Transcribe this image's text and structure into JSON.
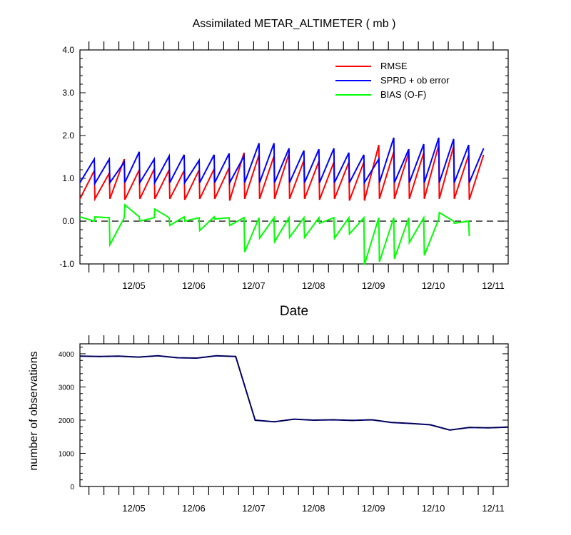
{
  "chart_data": [
    {
      "type": "line",
      "title": "Assimilated METAR_ALTIMETER ( mb )",
      "xlabel": "Date",
      "ylabel": "",
      "ylim": [
        -1.0,
        4.0
      ],
      "yticks": [
        "-1.0",
        "0.0",
        "1.0",
        "2.0",
        "3.0",
        "4.0"
      ],
      "xticks": [
        "12/05",
        "12/06",
        "12/07",
        "12/08",
        "12/09",
        "12/10",
        "12/11"
      ],
      "legend_position": "top-right",
      "reference_line": 0,
      "series": [
        {
          "name": "RMSE",
          "color": "#ff0000",
          "values": [
            0.52,
            1.18,
            0.52,
            1.12,
            0.52,
            1.45,
            0.5,
            1.2,
            0.52,
            1.22,
            0.52,
            1.2,
            0.52,
            1.18,
            0.5,
            1.2,
            0.52,
            1.22,
            0.52,
            1.25,
            0.48,
            1.6,
            0.52,
            1.55,
            0.52,
            1.52,
            0.52,
            1.58,
            0.52,
            1.42,
            0.52,
            1.4,
            0.5,
            1.38,
            0.52,
            1.38,
            0.48,
            1.38,
            0.48,
            1.78,
            0.52,
            1.62,
            0.52,
            1.6,
            0.52,
            1.6,
            0.52,
            1.78,
            0.52,
            1.75,
            0.52,
            1.55,
            0.5,
            1.55
          ]
        },
        {
          "name": "SPRD + ob error",
          "color": "#0000ff",
          "values": [
            0.9,
            1.45,
            0.88,
            1.45,
            0.9,
            1.38,
            0.9,
            1.62,
            0.9,
            1.45,
            0.9,
            1.52,
            0.9,
            1.55,
            0.9,
            1.42,
            0.9,
            1.55,
            0.9,
            1.58,
            0.9,
            1.52,
            0.9,
            1.82,
            0.9,
            1.82,
            0.9,
            1.7,
            0.9,
            1.65,
            0.9,
            1.68,
            0.9,
            1.7,
            0.9,
            1.6,
            0.9,
            1.55,
            0.9,
            1.45,
            0.9,
            1.95,
            0.9,
            1.68,
            0.9,
            1.8,
            0.9,
            1.95,
            0.9,
            1.92,
            0.9,
            1.78,
            0.9,
            1.7
          ]
        },
        {
          "name": "BIAS (O-F)",
          "color": "#00ff00",
          "values": [
            0.1,
            0.0,
            0.1,
            0.08,
            -0.55,
            0.08,
            0.38,
            0.1,
            0.0,
            0.08,
            0.28,
            0.08,
            -0.1,
            0.1,
            0.0,
            0.08,
            -0.22,
            0.1,
            0.05,
            0.08,
            -0.1,
            0.08,
            -0.72,
            0.08,
            -0.4,
            0.08,
            -0.48,
            0.08,
            -0.38,
            0.08,
            -0.38,
            0.08,
            -0.05,
            0.08,
            -0.4,
            0.08,
            -0.3,
            0.08,
            -1.02,
            0.08,
            -0.95,
            0.08,
            -0.88,
            0.08,
            -0.5,
            0.08,
            -0.8,
            0.05,
            0.2,
            0.0,
            -0.05,
            0.0,
            -0.35
          ]
        }
      ]
    },
    {
      "type": "line",
      "title": "",
      "xlabel": "",
      "ylabel": "number of observations",
      "ylim": [
        0,
        4300
      ],
      "yticks": [
        "0",
        "1000",
        "2000",
        "3000",
        "4000"
      ],
      "xticks": [
        "12/05",
        "12/06",
        "12/07",
        "12/08",
        "12/09",
        "12/10",
        "12/11"
      ],
      "series": [
        {
          "name": "observations",
          "color": "#000080",
          "values": [
            3930,
            3920,
            3930,
            3900,
            3940,
            3880,
            3870,
            3940,
            3920,
            2000,
            1950,
            2030,
            2000,
            2010,
            1990,
            2010,
            1930,
            1900,
            1860,
            1700,
            1780,
            1770,
            1790
          ]
        }
      ]
    }
  ]
}
